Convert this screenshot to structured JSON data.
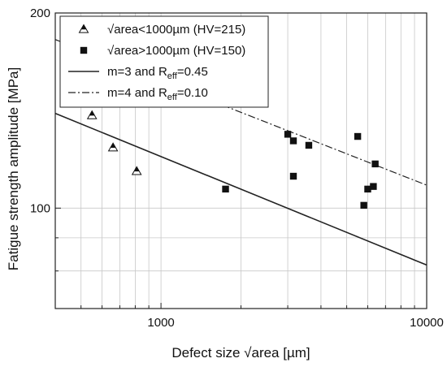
{
  "chart_data": {
    "type": "scatter",
    "xlabel": "Defect size √area [µm]",
    "ylabel": "Fatigue strength amplitude [MPa]",
    "x_scale": "log",
    "y_scale": "log",
    "xlim": [
      400,
      10000
    ],
    "ylim": [
      70,
      200
    ],
    "x_ticks": [
      1000,
      10000
    ],
    "x_tick_labels": [
      "1000",
      "10000"
    ],
    "y_ticks": [
      100,
      200
    ],
    "y_tick_labels": [
      "100",
      "200"
    ],
    "grid": true,
    "legend_placement": "top-left",
    "series": [
      {
        "name": "√area<1000µm (HV=215)",
        "label_main": "√area<1000µm (HV=215)",
        "label_sub": "",
        "marker": "triangle-open",
        "x": [
          550,
          660,
          810
        ],
        "y": [
          139,
          124,
          114
        ]
      },
      {
        "name": "√area>1000µm (HV=150)",
        "label_main": "√area>1000µm (HV=150)",
        "label_sub": "",
        "marker": "square-filled",
        "x": [
          1750,
          3000,
          3150,
          3150,
          3600,
          5500,
          5800,
          6000,
          6300,
          6400
        ],
        "y": [
          107,
          130,
          127,
          112,
          125,
          129,
          101,
          107,
          108,
          117
        ]
      },
      {
        "name": "m=3 and Reff=0.45",
        "label_main": "m=3 and R",
        "label_sub": "eff",
        "label_tail": "=0.45",
        "line": "solid",
        "x": [
          400,
          10000
        ],
        "y": [
          140,
          81.7
        ]
      },
      {
        "name": "m=4 and Reff=0.10",
        "label_main": "m=4 and R",
        "label_sub": "eff",
        "label_tail": "=0.10",
        "line": "dashdot",
        "x": [
          400,
          10000
        ],
        "y": [
          182,
          108.5
        ]
      }
    ],
    "colors": {
      "line": "#222222",
      "marker_fill": "#111111",
      "grid": "#c8c8c8"
    }
  }
}
